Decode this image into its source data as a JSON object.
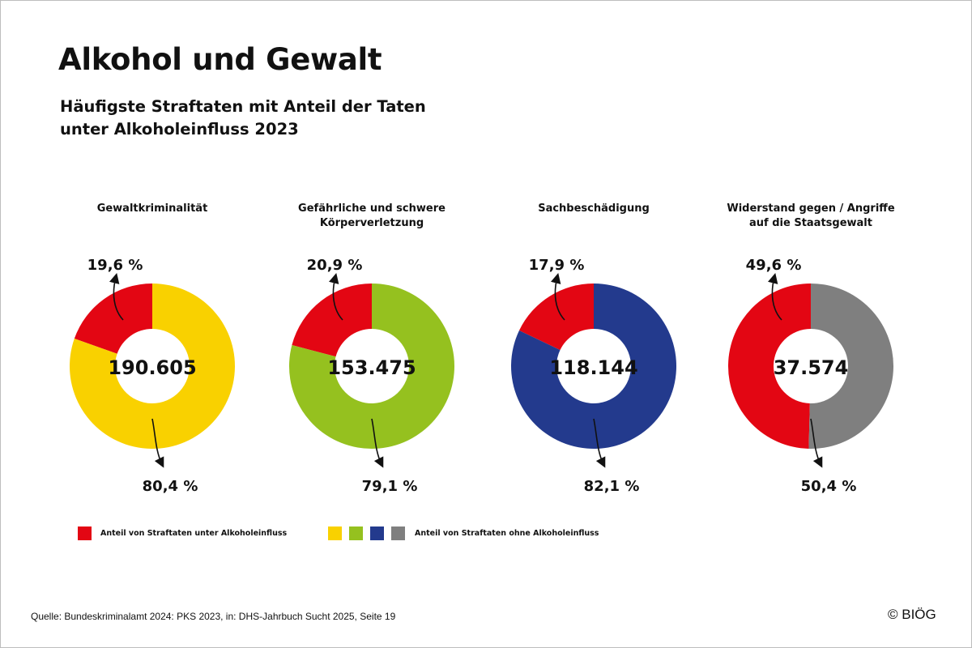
{
  "title": "Alkohol und Gewalt",
  "subtitle_line1": "Häufigste Straftaten mit Anteil der Taten",
  "subtitle_line2": "unter Alkoholeinfluss 2023",
  "colors": {
    "with_alcohol": "#e30613",
    "without": [
      "#f9d100",
      "#95c11f",
      "#233a8d",
      "#7f7f7f"
    ]
  },
  "chart_data": [
    {
      "type": "pie",
      "title": "Gewaltkriminalität",
      "title_lines": [
        "Gewaltkriminalität"
      ],
      "total_label": "190.605",
      "values": [
        19.6,
        80.4
      ],
      "labels": [
        "19,6 %",
        "80,4 %"
      ],
      "colors": [
        "#e30613",
        "#f9d100"
      ]
    },
    {
      "type": "pie",
      "title": "Gefährliche und schwere Körperverletzung",
      "title_lines": [
        "Gefährliche und schwere",
        "Körperverletzung"
      ],
      "total_label": "153.475",
      "values": [
        20.9,
        79.1
      ],
      "labels": [
        "20,9 %",
        "79,1 %"
      ],
      "colors": [
        "#e30613",
        "#95c11f"
      ]
    },
    {
      "type": "pie",
      "title": "Sachbeschädigung",
      "title_lines": [
        "Sachbeschädigung"
      ],
      "total_label": "118.144",
      "values": [
        17.9,
        82.1
      ],
      "labels": [
        "17,9 %",
        "82,1 %"
      ],
      "colors": [
        "#e30613",
        "#233a8d"
      ]
    },
    {
      "type": "pie",
      "title": "Widerstand gegen / Angriffe auf die Staatsgewalt",
      "title_lines": [
        "Widerstand gegen / Angriffe",
        "auf die Staatsgewalt"
      ],
      "total_label": "37.574",
      "values": [
        49.6,
        50.4
      ],
      "labels": [
        "49,6 %",
        "50,4 %"
      ],
      "colors": [
        "#e30613",
        "#7f7f7f"
      ]
    }
  ],
  "legend": {
    "with_label": "Anteil von Straftaten unter Alkoholeinfluss",
    "without_label": "Anteil von Straftaten ohne Alkoholeinfluss"
  },
  "source": "Quelle: Bundeskriminalamt 2024: PKS 2023, in: DHS-Jahrbuch Sucht 2025, Seite 19",
  "copyright": "© BIÖG"
}
